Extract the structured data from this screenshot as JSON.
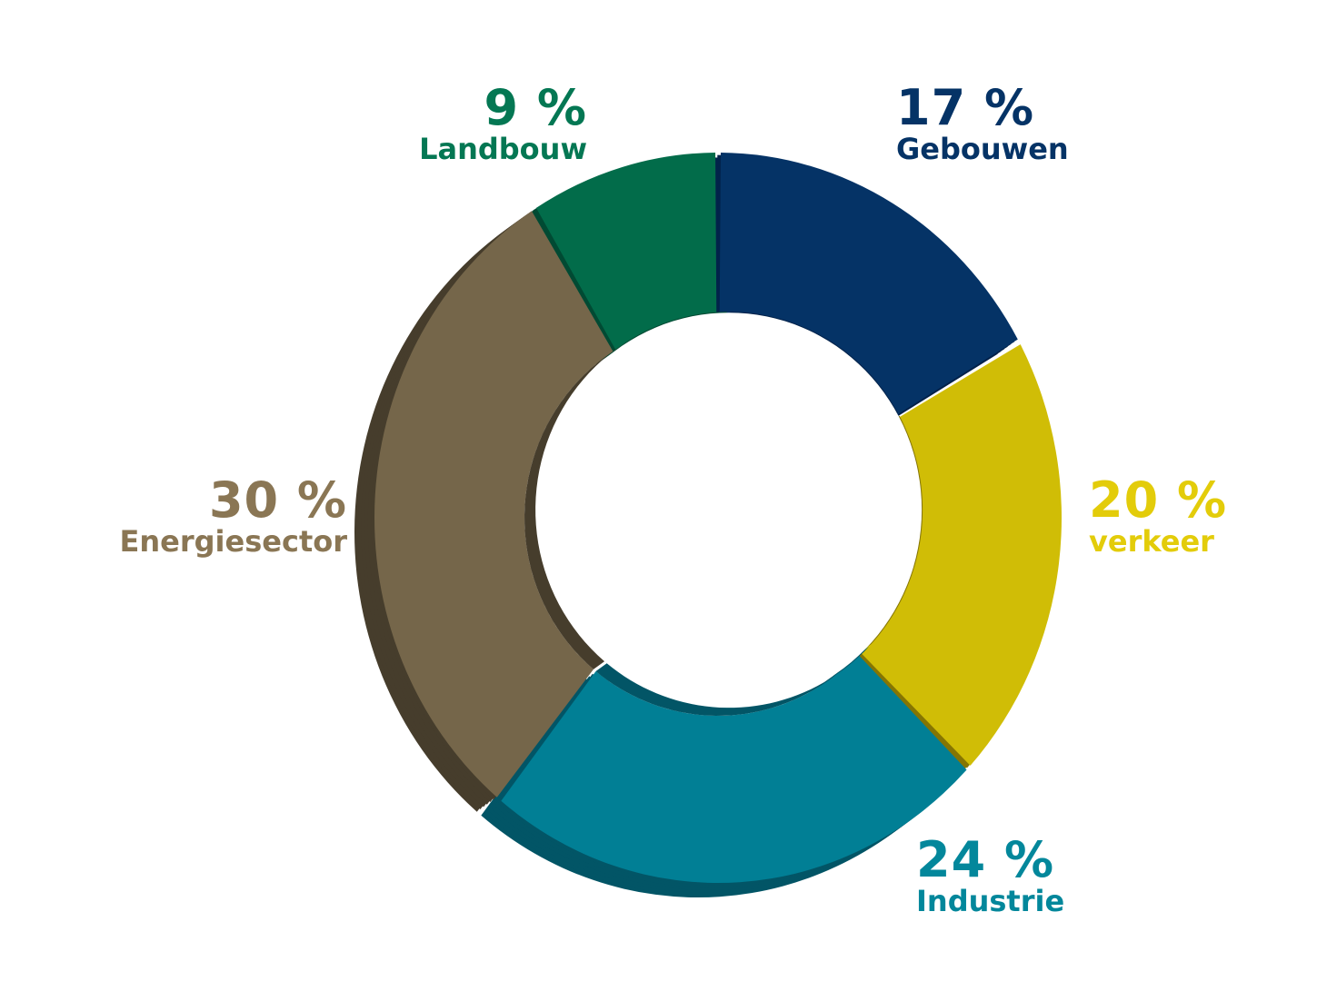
{
  "chart_data": {
    "type": "pie",
    "style": "3d-donut",
    "slices": [
      {
        "label": "Gebouwen",
        "value": 17,
        "value_label": "17 %",
        "color": "#053366",
        "shadow": "#02224a"
      },
      {
        "label": "verkeer",
        "value": 20,
        "value_label": "20 %",
        "color": "#d0bd06",
        "shadow": "#857503"
      },
      {
        "label": "Industrie",
        "value": 24,
        "value_label": "24 %",
        "color": "#017f95",
        "shadow": "#025566"
      },
      {
        "label": "Energiesector",
        "value": 30,
        "value_label": "30 %",
        "color": "#75664a",
        "shadow": "#463d2c"
      },
      {
        "label": "Landbouw",
        "value": 9,
        "value_label": "9 %",
        "color": "#026c4a",
        "shadow": "#014a33"
      }
    ],
    "label_colors": {
      "Gebouwen": "#053366",
      "verkeer": "#e3cc0a",
      "Industrie": "#03879b",
      "Energiesector": "#8a7654",
      "Landbouw": "#047753"
    },
    "start_angle_deg": 0,
    "direction": "clockwise"
  }
}
